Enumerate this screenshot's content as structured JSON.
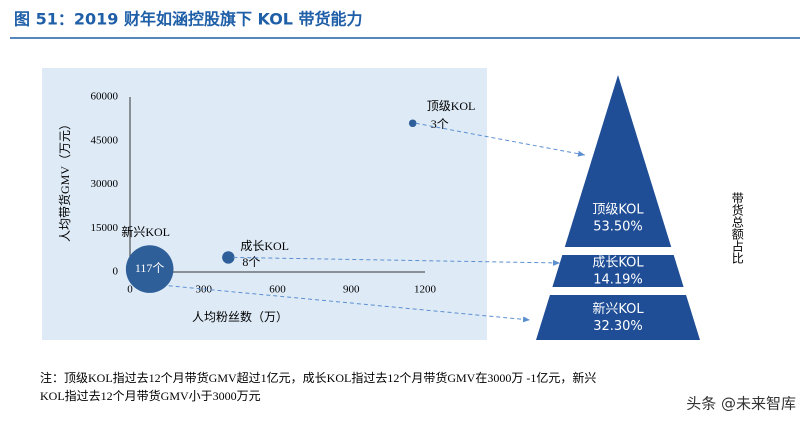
{
  "header": {
    "title": "图 51：2019 财年如涵控股旗下 KOL 带货能力"
  },
  "chart_data": [
    {
      "type": "scatter",
      "xlabel": "人均粉丝数（万）",
      "ylabel": "人均带货GMV（万元）",
      "xlim": [
        0,
        1200
      ],
      "xticks": [
        0,
        300,
        600,
        900,
        1200
      ],
      "ylim": [
        0,
        60000
      ],
      "yticks": [
        0,
        15000,
        30000,
        45000,
        60000
      ],
      "color": "#2f5f99",
      "points": [
        {
          "label": "新兴KOL",
          "x": 80,
          "y": 1000,
          "size": 117,
          "size_label": "117个"
        },
        {
          "label": "成长KOL",
          "x": 400,
          "y": 5000,
          "size": 8,
          "size_label": "8个"
        },
        {
          "label": "顶级KOL",
          "x": 1150,
          "y": 51000,
          "size": 3,
          "size_label": "3个"
        }
      ]
    },
    {
      "type": "pyramid",
      "title": "带货总额占比",
      "color": "#1f4e96",
      "categories": [
        "顶级KOL",
        "成长KOL",
        "新兴KOL"
      ],
      "values": [
        53.5,
        14.19,
        32.3
      ],
      "value_labels": [
        "53.50%",
        "14.19%",
        "32.30%"
      ]
    }
  ],
  "note": {
    "lines": [
      "注：顶级KOL指过去12个月带货GMV超过1亿元，成长KOL指过去12个月带货GMV在3000万 -1亿元，新兴",
      "KOL指过去12个月带货GMV小于3000万元"
    ]
  },
  "watermark": "头条 @未来智库"
}
